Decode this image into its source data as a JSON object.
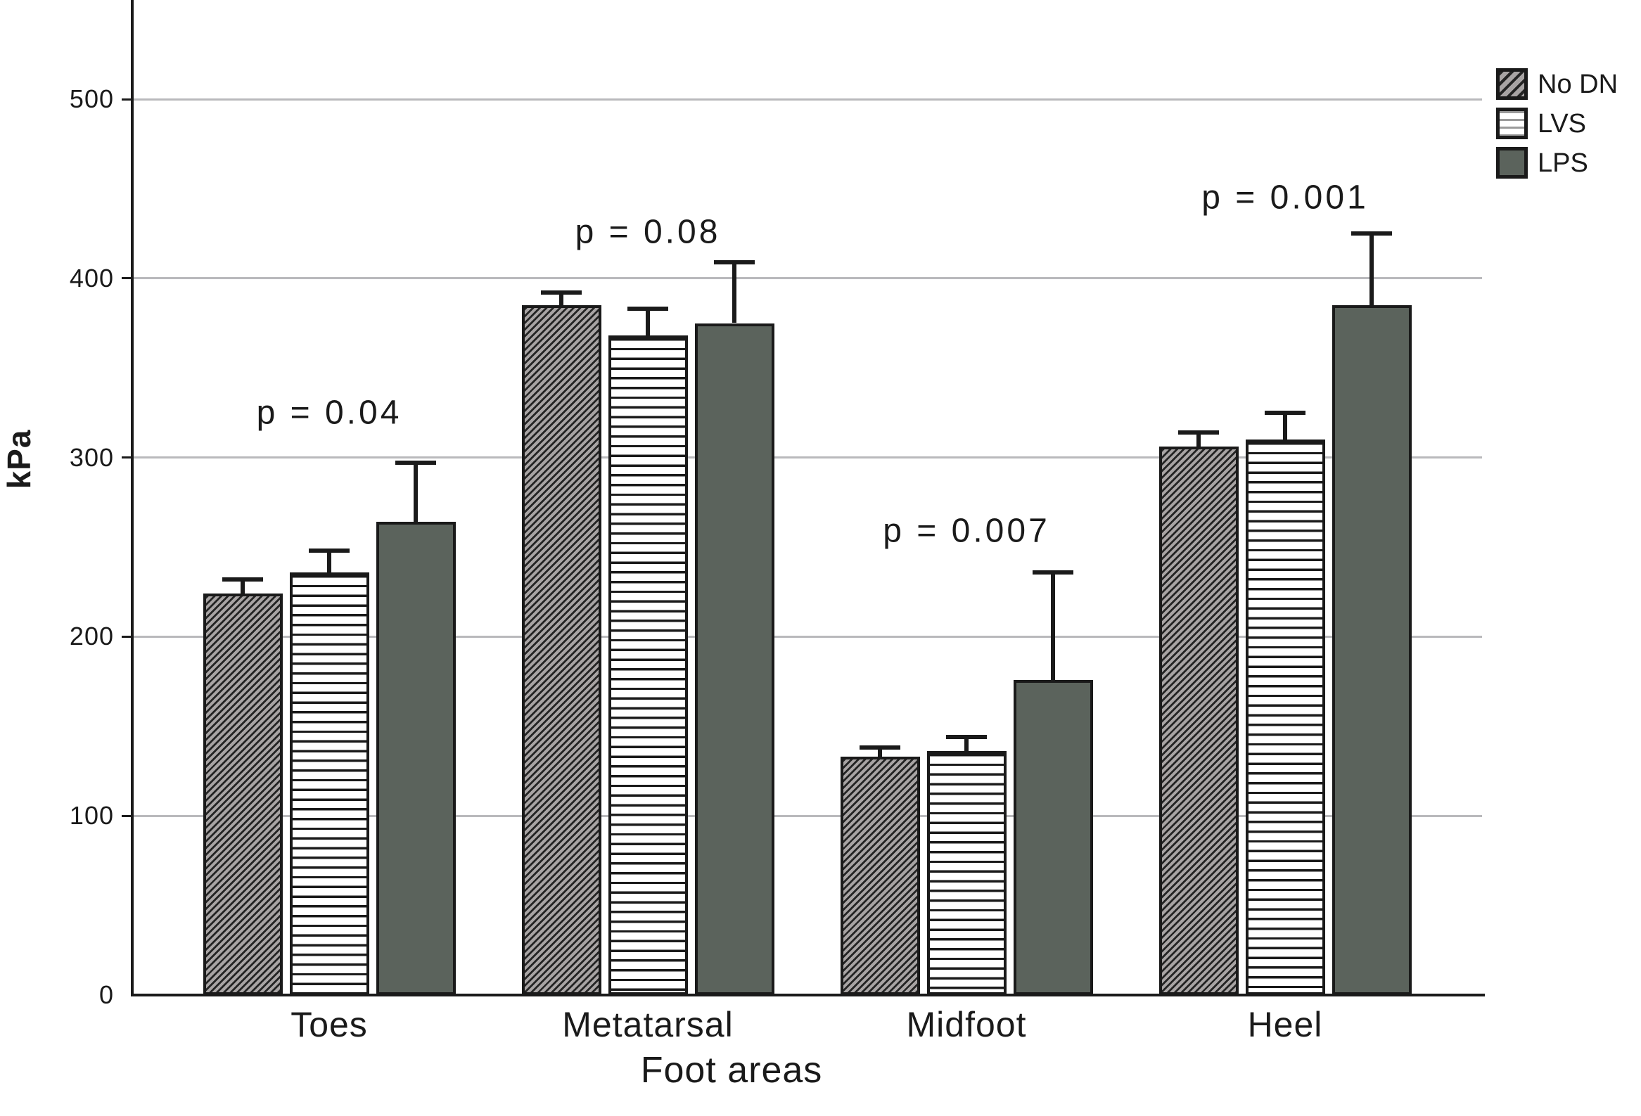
{
  "chart_data": {
    "type": "bar",
    "title": "",
    "xlabel": "Foot areas",
    "ylabel": "kPa",
    "ylim": [
      0,
      555
    ],
    "yticks": [
      0,
      100,
      200,
      300,
      400,
      500
    ],
    "grid": "horizontal",
    "legend_position": "top-right-outside",
    "categories": [
      "Toes",
      "Metatarsal",
      "Midfoot",
      "Heel"
    ],
    "series": [
      {
        "name": "No DN",
        "pattern": "diagonal-hatch",
        "fill": "#a8a4a4",
        "hatch_color": "#242424",
        "values": [
          224,
          385,
          133,
          306
        ],
        "errors_plus": [
          8,
          7,
          5,
          8
        ]
      },
      {
        "name": "LVS",
        "pattern": "horizontal-lines",
        "fill": "#ffffff",
        "hatch_color": "#1a1a1a",
        "values": [
          236,
          368,
          136,
          310
        ],
        "errors_plus": [
          12,
          15,
          8,
          15
        ]
      },
      {
        "name": "LPS",
        "pattern": "solid",
        "fill": "#5b635c",
        "hatch_color": "#5b635c",
        "values": [
          264,
          375,
          176,
          385
        ],
        "errors_plus": [
          33,
          34,
          60,
          40
        ]
      }
    ],
    "annotations": [
      {
        "category": "Toes",
        "text": "p = 0.04",
        "y_kpa": 325
      },
      {
        "category": "Metatarsal",
        "text": "p = 0.08",
        "y_kpa": 426
      },
      {
        "category": "Midfoot",
        "text": "p = 0.007",
        "y_kpa": 259
      },
      {
        "category": "Heel",
        "text": "p = 0.001",
        "y_kpa": 445
      }
    ]
  },
  "colors": {
    "axis": "#1a1a1a",
    "grid": "#b9b9bc",
    "text": "#1a1a1a",
    "lps_fill": "#5b635c",
    "hatch_background": "#a8a4a4",
    "background": "#ffffff"
  }
}
